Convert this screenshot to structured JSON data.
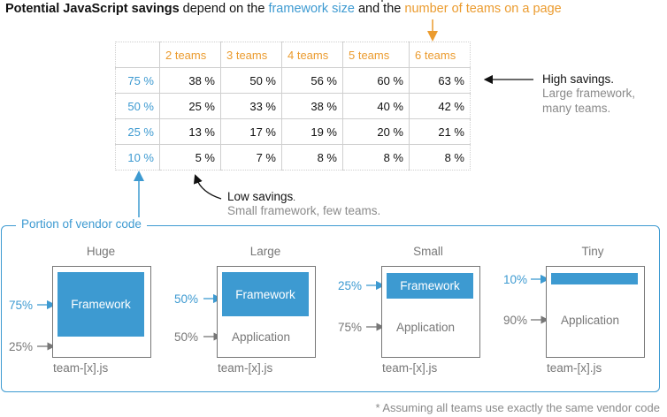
{
  "title": {
    "part1": "Potential JavaScript savings",
    "part2": " depend on the ",
    "part3": "framework size",
    "part4": " and the ",
    "part5": "number of teams on a page"
  },
  "table": {
    "columns": [
      "2 teams",
      "3 teams",
      "4 teams",
      "5 teams",
      "6 teams"
    ],
    "rows": [
      {
        "label": "75 %",
        "values": [
          "38 %",
          "50 %",
          "56 %",
          "60 %",
          "63 %"
        ]
      },
      {
        "label": "50 %",
        "values": [
          "25 %",
          "33 %",
          "38 %",
          "40 %",
          "42 %"
        ]
      },
      {
        "label": "25 %",
        "values": [
          "13 %",
          "17 %",
          "19 %",
          "20 %",
          "21 %"
        ]
      },
      {
        "label": "10 %",
        "values": [
          "5 %",
          "7 %",
          "8 %",
          "8 %",
          "8 %"
        ]
      }
    ]
  },
  "high_note": {
    "head": "High savings.",
    "line1": "Large framework,",
    "line2": "many teams."
  },
  "low_note": {
    "head": "Low savings",
    "dot": ".",
    "line1": "Small framework, few teams."
  },
  "portion": {
    "label": "Portion of vendor code",
    "examples": [
      {
        "title": "Huge",
        "framework_pct": "75%",
        "app_pct": "25%",
        "framework_label": "Framework",
        "app_label": "",
        "file": "team-[x].js",
        "fraction": 0.75
      },
      {
        "title": "Large",
        "framework_pct": "50%",
        "app_pct": "50%",
        "framework_label": "Framework",
        "app_label": "Application",
        "file": "team-[x].js",
        "fraction": 0.5
      },
      {
        "title": "Small",
        "framework_pct": "25%",
        "app_pct": "75%",
        "framework_label": "Framework",
        "app_label": "Application",
        "file": "team-[x].js",
        "fraction": 0.25
      },
      {
        "title": "Tiny",
        "framework_pct": "10%",
        "app_pct": "90%",
        "framework_label": "",
        "app_label": "Application",
        "file": "team-[x].js",
        "fraction": 0.1
      }
    ]
  },
  "footnote": "* Assuming all teams use exactly the same vendor code",
  "colors": {
    "blue": "#3d9ad1",
    "orange": "#eb9b2e",
    "gray": "#8a8a8a"
  }
}
